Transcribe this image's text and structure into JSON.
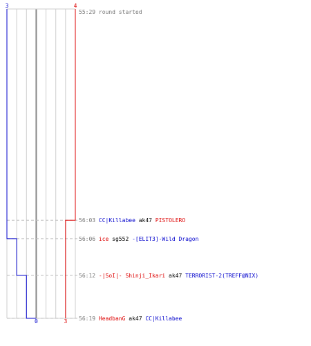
{
  "chart_data": {
    "type": "line",
    "title": "",
    "xlabel": "",
    "ylabel": "",
    "grid": true,
    "teams": [
      {
        "id": "blue",
        "color": "#0000cc",
        "start_count": "3",
        "end_count": "0",
        "start": 3
      },
      {
        "id": "red",
        "color": "#dd0000",
        "start_count": "4",
        "end_count": "3",
        "start": 4
      }
    ],
    "x_range": [
      0,
      7
    ],
    "y_range_seconds": [
      0,
      50
    ],
    "events": [
      {
        "time": "55:29",
        "t": 0,
        "text": "round started",
        "type": "start",
        "blue_after": 3,
        "red_after": 4
      },
      {
        "time": "56:03",
        "t": 34,
        "type": "kill",
        "killer": "CC|Killabee",
        "killer_team": "blue",
        "weapon": "ak47",
        "victim": "PISTOLERO",
        "victim_team": "red",
        "blue_after": 3,
        "red_after": 3
      },
      {
        "time": "56:06",
        "t": 37,
        "type": "kill",
        "killer": "ice",
        "killer_team": "red",
        "weapon": "sg552",
        "victim": "-[ELIT3]-Wild Dragon",
        "victim_team": "blue",
        "blue_after": 2,
        "red_after": 3
      },
      {
        "time": "56:12",
        "t": 43,
        "type": "kill",
        "killer": "-|SoI|- Shinji_Ikari",
        "killer_team": "red",
        "weapon": "ak47",
        "victim": "TERRORIST-2(TREFF@NIX)",
        "victim_team": "blue",
        "blue_after": 1,
        "red_after": 3
      },
      {
        "time": "56:19",
        "t": 50,
        "type": "kill",
        "killer": "HeadbanG",
        "killer_team": "red",
        "weapon": "ak47",
        "victim": "CC|Killabee",
        "victim_team": "blue",
        "blue_after": 0,
        "red_after": 3
      }
    ]
  },
  "colors": {
    "grid": "#cccccc",
    "axis": "#888888",
    "dashed": "#bbbbbb",
    "neutral_text": "#000000",
    "time_text": "#777777",
    "start_text": "#777777"
  }
}
